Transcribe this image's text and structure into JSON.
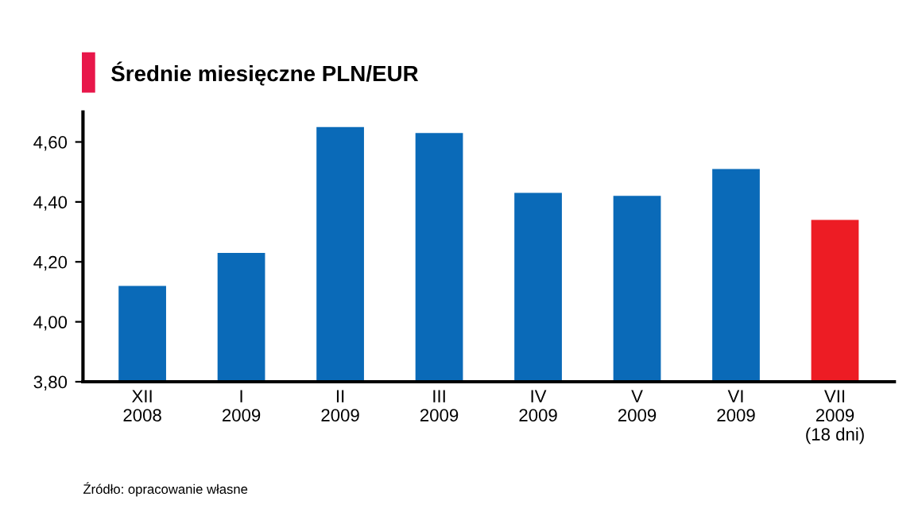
{
  "chart_data": {
    "type": "bar",
    "title": "Średnie miesięczne PLN/EUR",
    "categories": [
      "XII\n2008",
      "I\n2009",
      "II\n2009",
      "III\n2009",
      "IV\n2009",
      "V\n2009",
      "VI\n2009",
      "VII\n2009\n(18 dni)"
    ],
    "values": [
      4.12,
      4.23,
      4.65,
      4.63,
      4.43,
      4.42,
      4.51,
      4.34
    ],
    "colors": [
      "#0a6ab8",
      "#0a6ab8",
      "#0a6ab8",
      "#0a6ab8",
      "#0a6ab8",
      "#0a6ab8",
      "#0a6ab8",
      "#ed1c24"
    ],
    "ylim": [
      3.8,
      4.7
    ],
    "yticks": [
      {
        "value": 3.8,
        "label": "3,80"
      },
      {
        "value": 4.0,
        "label": "4,00"
      },
      {
        "value": 4.2,
        "label": "4,20"
      },
      {
        "value": 4.4,
        "label": "4,40"
      },
      {
        "value": 4.6,
        "label": "4,60"
      }
    ],
    "grid": false,
    "annotations": [
      "Źródło: opracowanie własne"
    ]
  }
}
